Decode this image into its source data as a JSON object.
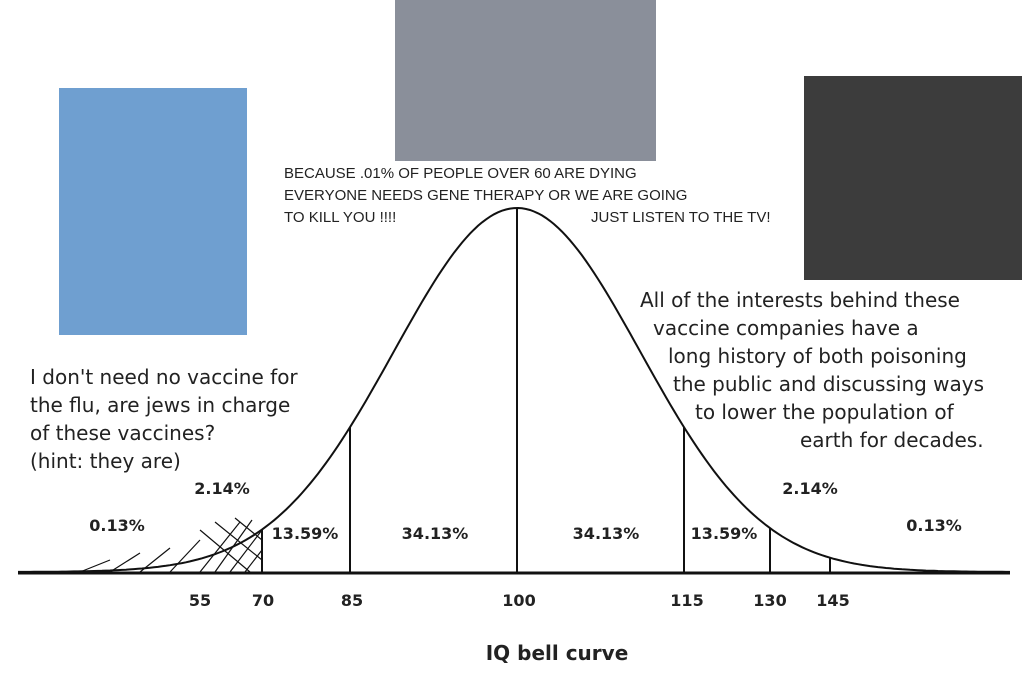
{
  "captions": {
    "top": [
      "BECAUSE .01% OF PEOPLE OVER 60 ARE DYING",
      "EVERYONE NEEDS GENE THERAPY OR WE ARE GOING",
      "TO KILL YOU !!!!"
    ],
    "top_right": "JUST LISTEN TO THE TV!",
    "left": [
      "I don't need no vaccine for",
      "the flu, are jews in charge",
      "of these vaccines?",
      "(hint: they are)"
    ],
    "right": [
      "All of the interests behind these",
      "vaccine companies have a",
      "long history of both poisoning",
      "the public and discussing ways",
      "to lower the population of",
      "earth for decades."
    ]
  },
  "curve": {
    "title": "IQ bell curve",
    "x_labels": [
      "55",
      "70",
      "85",
      "100",
      "115",
      "130",
      "145"
    ],
    "region_labels": [
      "0.13%",
      "2.14%",
      "13.59%",
      "34.13%",
      "34.13%",
      "13.59%",
      "2.14%",
      "0.13%"
    ]
  }
}
